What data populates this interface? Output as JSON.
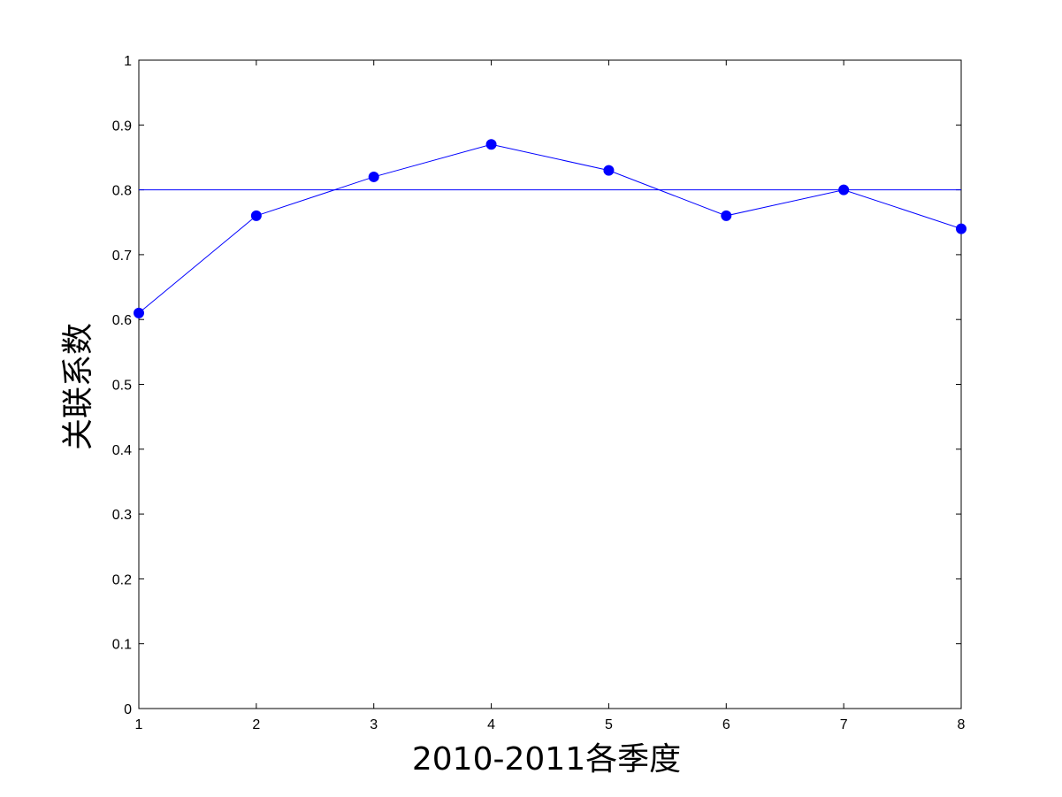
{
  "chart_data": {
    "type": "line",
    "title": "",
    "xlabel": "2010-2011各季度",
    "ylabel": "关联系数",
    "xlim": [
      1,
      8
    ],
    "ylim": [
      0,
      1
    ],
    "x_ticks": [
      "1",
      "2",
      "3",
      "4",
      "5",
      "6",
      "7",
      "8"
    ],
    "y_ticks": [
      "0",
      "0.1",
      "0.2",
      "0.3",
      "0.4",
      "0.5",
      "0.6",
      "0.7",
      "0.8",
      "0.9",
      "1"
    ],
    "grid": false,
    "legend": "none",
    "series": [
      {
        "x": [
          1,
          2,
          3,
          4,
          5,
          6,
          7,
          8
        ],
        "values": [
          0.61,
          0.76,
          0.82,
          0.87,
          0.83,
          0.76,
          0.8,
          0.74
        ],
        "color": "#0000ff",
        "marker": "circle"
      }
    ],
    "reference_lines": [
      {
        "orientation": "horizontal",
        "y": 0.8,
        "color": "#0000ff"
      }
    ]
  }
}
